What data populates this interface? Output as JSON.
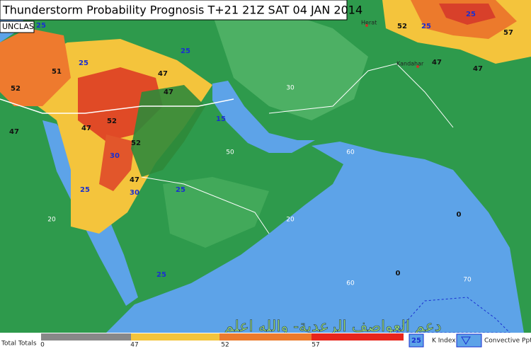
{
  "header": {
    "title": "Thunderstorm Probability Prognosis T+21 21Z SAT 04 JAN 2014",
    "classification": "UNCLAS"
  },
  "map": {
    "cities": [
      "Herat",
      "Kandahar"
    ],
    "grid_labels": [
      "30",
      "20",
      "20",
      "50",
      "60",
      "70",
      "60"
    ],
    "total_totals_labels": [
      "52",
      "47",
      "51",
      "52",
      "47",
      "47",
      "47",
      "52",
      "47",
      "52",
      "57",
      "47",
      "47"
    ],
    "k_index_labels": [
      "25",
      "25",
      "30",
      "25",
      "25",
      "25",
      "15",
      "25",
      "25",
      "25",
      "30"
    ],
    "convective_labels": [
      "0",
      "0"
    ],
    "watermark": "دعم العواصف الرعدية- والله اعلم"
  },
  "footer": {
    "scale_title": "Total Totals",
    "scale_ticks": [
      "0",
      "47",
      "52",
      "57"
    ],
    "legend": {
      "k_index_sample": "25",
      "k_index": "K Index",
      "convective": "Convective Pptn"
    }
  }
}
